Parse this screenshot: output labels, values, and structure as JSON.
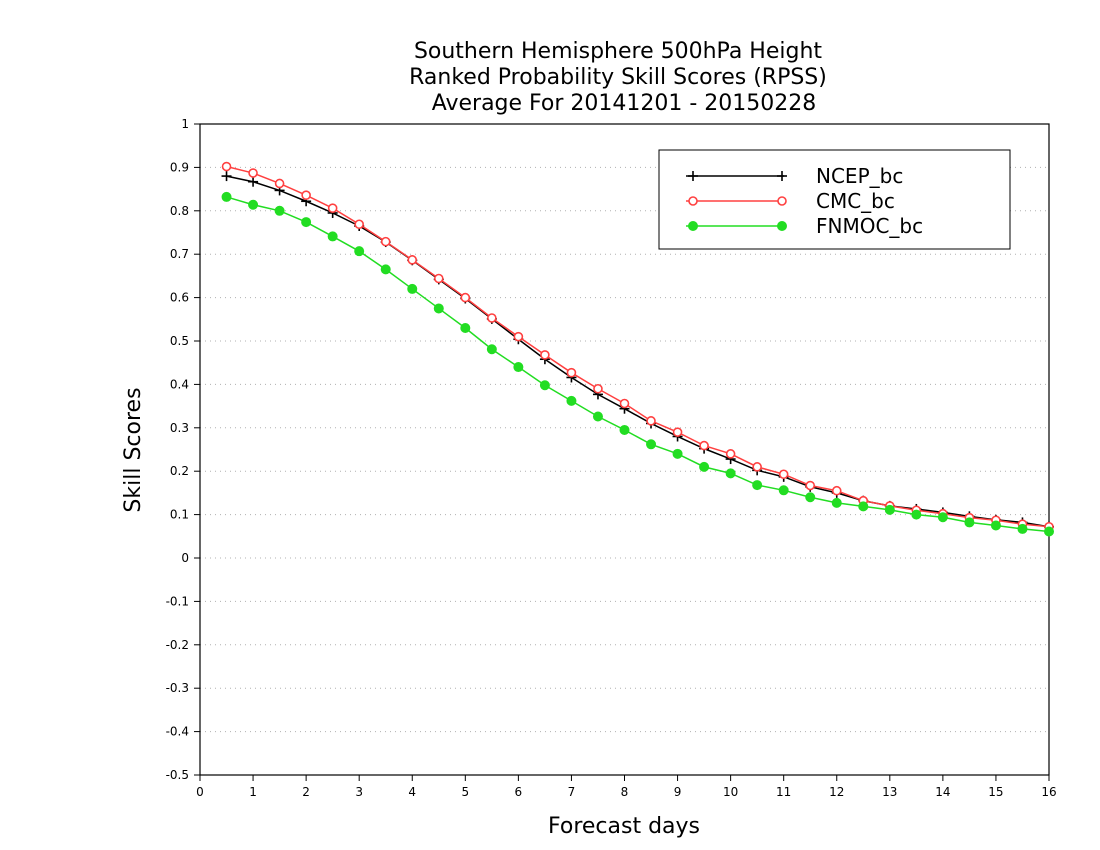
{
  "chart_data": {
    "type": "line",
    "title_lines": [
      "Southern Hemisphere 500hPa Height",
      "Ranked Probability Skill Scores (RPSS)",
      "Average For 20141201 - 20150228"
    ],
    "xlabel": "Forecast days",
    "ylabel": "Skill Scores",
    "xlim": [
      0,
      16
    ],
    "ylim": [
      -0.5,
      1
    ],
    "xticks": [
      "0",
      "1",
      "2",
      "3",
      "4",
      "5",
      "6",
      "7",
      "8",
      "9",
      "10",
      "11",
      "12",
      "13",
      "14",
      "15",
      "16"
    ],
    "yticks": [
      "1",
      "0.9",
      "0.8",
      "0.7",
      "0.6",
      "0.5",
      "0.4",
      "0.3",
      "0.2",
      "0.1",
      "0",
      "-0.1",
      "-0.2",
      "-0.3",
      "-0.4",
      "-0.5"
    ],
    "grid": "horizontal dotted",
    "legend_position": "top-right",
    "x": [
      0.5,
      1,
      1.5,
      2,
      2.5,
      3,
      3.5,
      4,
      4.5,
      5,
      5.5,
      6,
      6.5,
      7,
      7.5,
      8,
      8.5,
      9,
      9.5,
      10,
      10.5,
      11,
      11.5,
      12,
      12.5,
      13,
      13.5,
      14,
      14.5,
      15,
      15.5,
      16
    ],
    "series": [
      {
        "name": "NCEP_bc",
        "color": "#000000",
        "marker": "plus",
        "values": [
          0.88,
          0.867,
          0.847,
          0.822,
          0.795,
          0.765,
          0.728,
          0.686,
          0.642,
          0.598,
          0.551,
          0.504,
          0.458,
          0.416,
          0.377,
          0.344,
          0.31,
          0.28,
          0.252,
          0.228,
          0.202,
          0.187,
          0.164,
          0.15,
          0.132,
          0.12,
          0.113,
          0.105,
          0.096,
          0.088,
          0.082,
          0.072
        ]
      },
      {
        "name": "CMC_bc",
        "color": "#ff4040",
        "marker": "open-circle",
        "values": [
          0.902,
          0.887,
          0.863,
          0.836,
          0.806,
          0.769,
          0.729,
          0.687,
          0.644,
          0.6,
          0.553,
          0.51,
          0.468,
          0.427,
          0.39,
          0.356,
          0.316,
          0.29,
          0.259,
          0.24,
          0.21,
          0.193,
          0.167,
          0.155,
          0.132,
          0.12,
          0.11,
          0.102,
          0.093,
          0.087,
          0.078,
          0.072
        ]
      },
      {
        "name": "FNMOC_bc",
        "color": "#22dd22",
        "marker": "filled-circle",
        "values": [
          0.832,
          0.814,
          0.8,
          0.774,
          0.741,
          0.707,
          0.665,
          0.62,
          0.575,
          0.53,
          0.481,
          0.44,
          0.398,
          0.362,
          0.326,
          0.295,
          0.262,
          0.24,
          0.21,
          0.195,
          0.168,
          0.156,
          0.14,
          0.127,
          0.119,
          0.111,
          0.1,
          0.094,
          0.082,
          0.075,
          0.067,
          0.061
        ]
      }
    ]
  }
}
